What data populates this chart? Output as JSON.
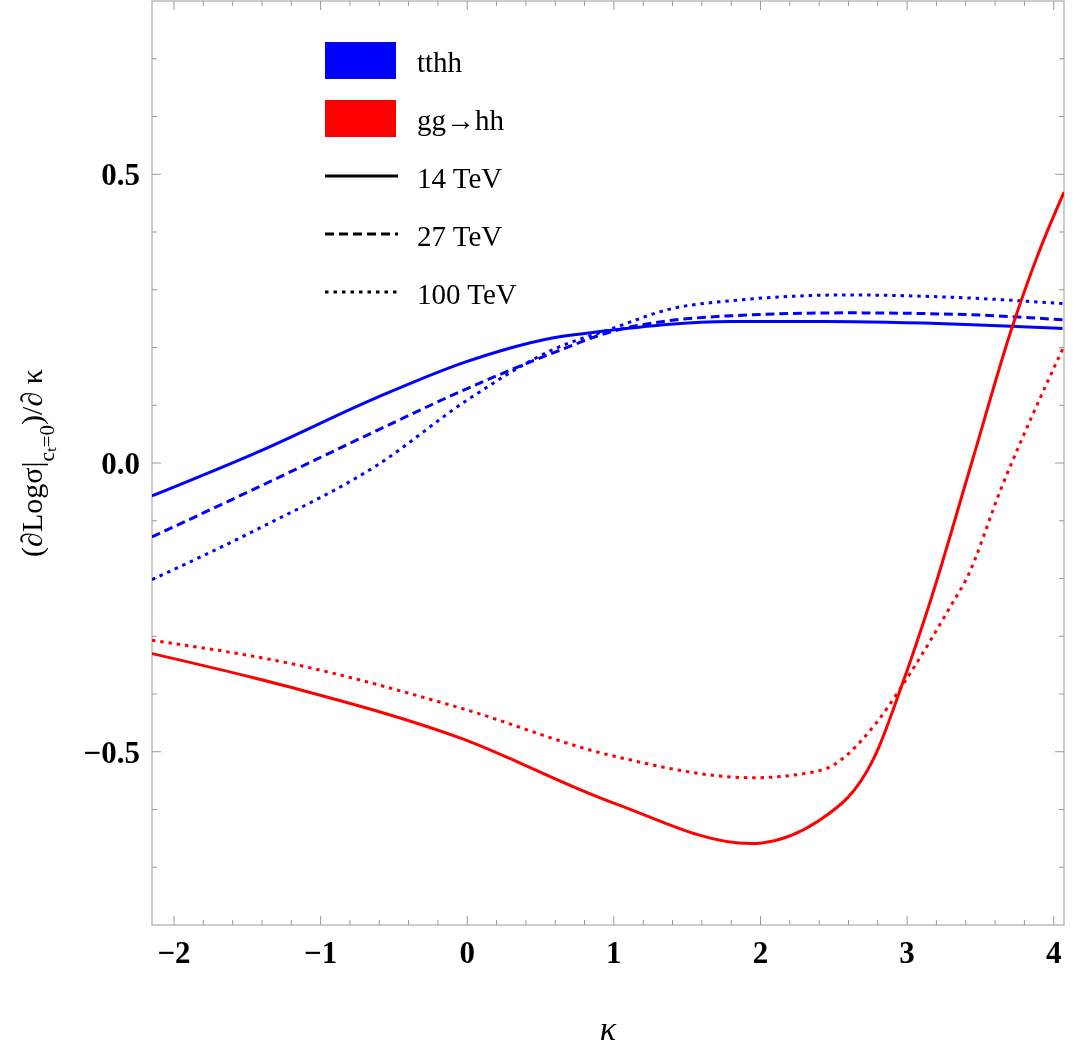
{
  "chart_data": {
    "type": "line",
    "xlabel": "κ",
    "ylabel": "(∂Logσ|$_{cₜ=0}$)/∂ κ",
    "xlim": [
      -2.15,
      4.07
    ],
    "ylim": [
      -0.8,
      0.8
    ],
    "xticks": [
      {
        "value": -2,
        "label": "−2"
      },
      {
        "value": -1.8,
        "label": null
      },
      {
        "value": -1.6,
        "label": null
      },
      {
        "value": -1.4,
        "label": null
      },
      {
        "value": -1.2,
        "label": null
      },
      {
        "value": -1,
        "label": "−1"
      },
      {
        "value": -0.8,
        "label": null
      },
      {
        "value": -0.6,
        "label": null
      },
      {
        "value": -0.4,
        "label": null
      },
      {
        "value": -0.2,
        "label": null
      },
      0,
      {
        "value": 0.2,
        "label": null
      },
      {
        "value": 0.4,
        "label": null
      },
      {
        "value": 0.6,
        "label": null
      },
      {
        "value": 0.8,
        "label": null
      },
      1,
      {
        "value": 1.2,
        "label": null
      },
      {
        "value": 1.4,
        "label": null
      },
      {
        "value": 1.6,
        "label": null
      },
      {
        "value": 1.8,
        "label": null
      },
      2,
      {
        "value": 2.2,
        "label": null
      },
      {
        "value": 2.4,
        "label": null
      },
      {
        "value": 2.6,
        "label": null
      },
      {
        "value": 2.8,
        "label": null
      },
      3,
      {
        "value": 3.2,
        "label": null
      },
      {
        "value": 3.4,
        "label": null
      },
      {
        "value": 3.6,
        "label": null
      },
      {
        "value": 3.8,
        "label": null
      },
      4
    ],
    "yticks": [
      {
        "value": -0.7,
        "label": null
      },
      {
        "value": -0.6,
        "label": null
      },
      {
        "value": -0.5,
        "label": "−0.5"
      },
      {
        "value": -0.4,
        "label": null
      },
      {
        "value": -0.3,
        "label": null
      },
      {
        "value": -0.2,
        "label": null
      },
      {
        "value": -0.1,
        "label": null
      },
      {
        "value": 0,
        "label": "0.0"
      },
      {
        "value": 0.1,
        "label": null
      },
      {
        "value": 0.2,
        "label": null
      },
      {
        "value": 0.3,
        "label": null
      },
      {
        "value": 0.4,
        "label": null
      },
      0.5,
      {
        "value": 0.6,
        "label": null
      },
      {
        "value": 0.7,
        "label": null
      }
    ],
    "annotations": [
      "tthh",
      "gg→hh",
      "14 TeV",
      "27 TeV",
      "100 TeV"
    ],
    "series": [
      {
        "color": "#0000ff",
        "line_style": "solid",
        "x": [
          -2.15,
          -1.41,
          -0.61,
          0,
          0.59,
          0.92,
          1.8,
          2.44,
          3.4,
          4.06
        ],
        "values": [
          -0.057,
          0.021,
          0.114,
          0.176,
          0.217,
          0.228,
          0.245,
          0.245,
          0.24,
          0.233
        ]
      },
      {
        "color": "#0000ff",
        "line_style": "dashed",
        "x": [
          -2.15,
          -1.41,
          -0.61,
          0,
          0.59,
          0.99,
          1.8,
          2.6,
          3.4,
          4.06
        ],
        "values": [
          -0.128,
          -0.04,
          0.057,
          0.129,
          0.191,
          0.228,
          0.255,
          0.26,
          0.257,
          0.248
        ]
      },
      {
        "color": "#0000ff",
        "line_style": "dotted",
        "x": [
          -2.15,
          -1.41,
          -0.61,
          0,
          0.59,
          0.99,
          1.39,
          1.8,
          2.6,
          3.4,
          4.06
        ],
        "values": [
          -0.202,
          -0.112,
          -0.003,
          0.109,
          0.197,
          0.233,
          0.267,
          0.281,
          0.291,
          0.286,
          0.276
        ]
      },
      {
        "color": "#ff0000",
        "line_style": "solid",
        "x": [
          -2.15,
          -1.21,
          -0.05,
          0.99,
          1.93,
          2.4,
          2.79,
          2.96,
          3.16,
          3.44,
          3.72,
          3.9,
          4.07
        ],
        "values": [
          -0.33,
          -0.388,
          -0.476,
          -0.588,
          -0.659,
          -0.619,
          -0.502,
          -0.388,
          -0.238,
          0,
          0.238,
          0.366,
          0.469
        ]
      },
      {
        "color": "#ff0000",
        "line_style": "dotted",
        "x": [
          -2.15,
          -1.21,
          -0.05,
          0.99,
          1.95,
          2.4,
          2.79,
          2.96,
          3.32,
          3.4,
          3.64,
          4.06
        ],
        "values": [
          -0.307,
          -0.347,
          -0.424,
          -0.507,
          -0.545,
          -0.533,
          -0.45,
          -0.388,
          -0.238,
          -0.203,
          -0.045,
          0.197
        ]
      }
    ]
  }
}
